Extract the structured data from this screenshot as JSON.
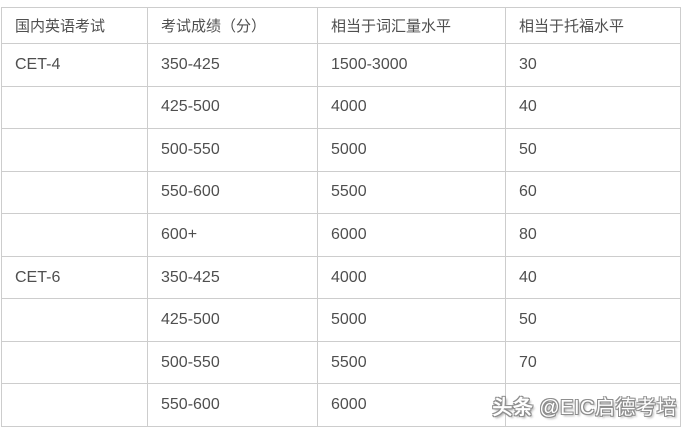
{
  "chart_data": {
    "type": "table",
    "columns": [
      "国内英语考试",
      "考试成绩（分）",
      "相当于词汇量水平",
      "相当于托福水平"
    ],
    "rows": [
      [
        "CET-4",
        "350-425",
        "1500-3000",
        "30"
      ],
      [
        "",
        "425-500",
        "4000",
        "40"
      ],
      [
        "",
        "500-550",
        "5000",
        "50"
      ],
      [
        "",
        "550-600",
        "5500",
        "60"
      ],
      [
        "",
        "600+",
        "6000",
        "80"
      ],
      [
        "CET-6",
        "350-425",
        "4000",
        "40"
      ],
      [
        "",
        "425-500",
        "5000",
        "50"
      ],
      [
        "",
        "500-550",
        "5500",
        "70"
      ],
      [
        "",
        "550-600",
        "6000",
        ""
      ]
    ]
  },
  "watermark": {
    "brand": "头条",
    "handle": "@EIC启德考培"
  },
  "colors": {
    "border": "#cdcdcd",
    "text": "#4f4f4f",
    "background": "#ffffff",
    "watermark_fill": "#ffffff",
    "watermark_outline": "#8e8e8e"
  }
}
